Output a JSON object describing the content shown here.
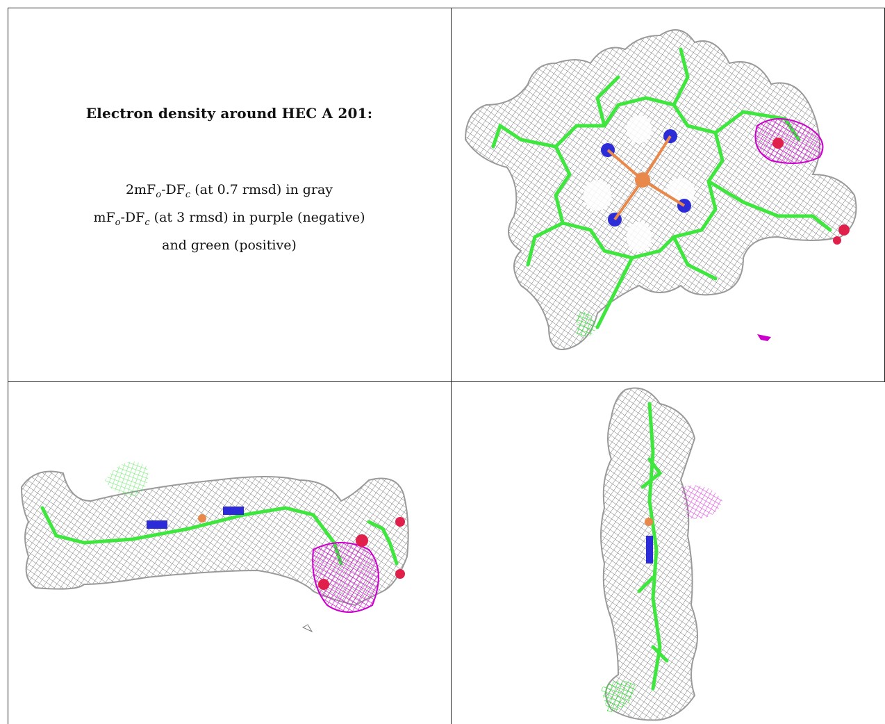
{
  "caption": {
    "title": "Electron density around HEC A 201:",
    "line1": {
      "prefix": "2mF",
      "sub_o": "o",
      "mid": "-DF",
      "sub_c": "c",
      "suffix": " (at 0.7 rmsd) in gray"
    },
    "line2": {
      "prefix": "mF",
      "sub_o": "o",
      "mid": "-DF",
      "sub_c": "c",
      "suffix": " (at 3 rmsd) in purple (negative)"
    },
    "line3": "and green (positive)"
  },
  "colors": {
    "mesh_gray": "#8a8a8a",
    "carbon_green": "#3ee63e",
    "nitrogen_blue": "#2b2bd8",
    "iron_orange": "#e8884a",
    "oxygen_red": "#e0204a",
    "negative_purple": "#d500d5",
    "positive_green": "#30e030"
  },
  "panels": [
    {
      "view": "top-view",
      "icon": "heme-density-top-view"
    },
    {
      "view": "side-view",
      "icon": "heme-density-side-view"
    },
    {
      "view": "edge-view",
      "icon": "heme-density-edge-view"
    }
  ]
}
